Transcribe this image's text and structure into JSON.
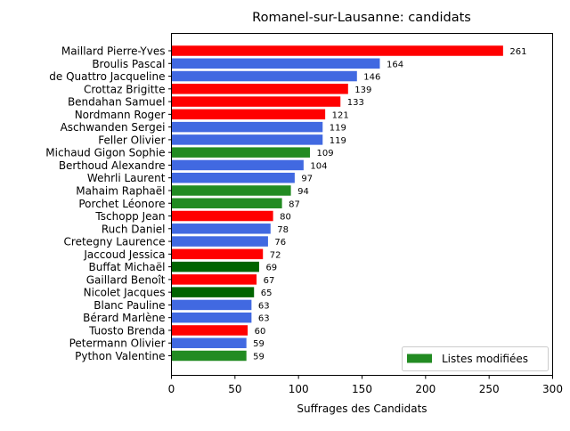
{
  "chart_data": {
    "type": "bar",
    "orientation": "horizontal",
    "title": "Romanel-sur-Lausanne: candidats",
    "xlabel": "Suffrages des Candidats",
    "ylabel": "",
    "xlim": [
      0,
      300
    ],
    "xticks": [
      0,
      50,
      100,
      150,
      200,
      250,
      300
    ],
    "grid": false,
    "legend": {
      "placement": "lower-right",
      "entries": [
        {
          "label": "Listes modifiées",
          "color": "#228b22"
        }
      ]
    },
    "colors": {
      "red": "#ff0000",
      "blue": "#4169e1",
      "green": "#228b22",
      "darkgreen": "#006400"
    },
    "bars": [
      {
        "name": "Maillard Pierre-Yves",
        "value": 261,
        "color": "red"
      },
      {
        "name": "Broulis Pascal",
        "value": 164,
        "color": "blue"
      },
      {
        "name": "de Quattro Jacqueline",
        "value": 146,
        "color": "blue"
      },
      {
        "name": "Crottaz Brigitte",
        "value": 139,
        "color": "red"
      },
      {
        "name": "Bendahan Samuel",
        "value": 133,
        "color": "red"
      },
      {
        "name": "Nordmann Roger",
        "value": 121,
        "color": "red"
      },
      {
        "name": "Aschwanden Sergei",
        "value": 119,
        "color": "blue"
      },
      {
        "name": "Feller Olivier",
        "value": 119,
        "color": "blue"
      },
      {
        "name": "Michaud Gigon Sophie",
        "value": 109,
        "color": "green"
      },
      {
        "name": "Berthoud Alexandre",
        "value": 104,
        "color": "blue"
      },
      {
        "name": "Wehrli Laurent",
        "value": 97,
        "color": "blue"
      },
      {
        "name": "Mahaim Raphaël",
        "value": 94,
        "color": "green"
      },
      {
        "name": "Porchet Léonore",
        "value": 87,
        "color": "green"
      },
      {
        "name": "Tschopp Jean",
        "value": 80,
        "color": "red"
      },
      {
        "name": "Ruch Daniel",
        "value": 78,
        "color": "blue"
      },
      {
        "name": "Cretegny Laurence",
        "value": 76,
        "color": "blue"
      },
      {
        "name": "Jaccoud Jessica",
        "value": 72,
        "color": "red"
      },
      {
        "name": "Buffat Michaël",
        "value": 69,
        "color": "darkgreen"
      },
      {
        "name": "Gaillard Benoît",
        "value": 67,
        "color": "red"
      },
      {
        "name": "Nicolet Jacques",
        "value": 65,
        "color": "darkgreen"
      },
      {
        "name": "Blanc Pauline",
        "value": 63,
        "color": "blue"
      },
      {
        "name": "Bérard Marlène",
        "value": 63,
        "color": "blue"
      },
      {
        "name": "Tuosto Brenda",
        "value": 60,
        "color": "red"
      },
      {
        "name": "Petermann Olivier",
        "value": 59,
        "color": "blue"
      },
      {
        "name": "Python Valentine",
        "value": 59,
        "color": "green"
      }
    ]
  }
}
